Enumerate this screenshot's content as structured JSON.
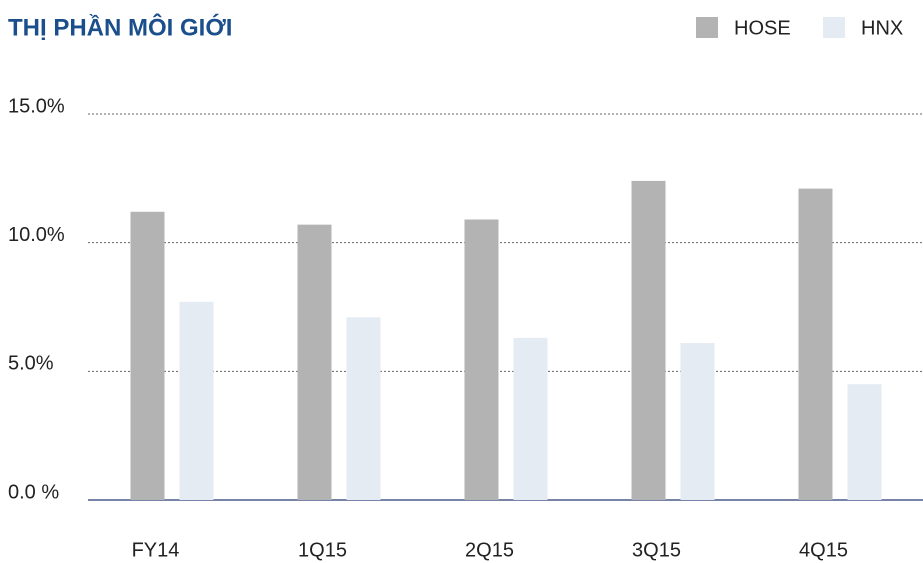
{
  "chart_data": {
    "type": "bar",
    "title": "THỊ PHẦN MÔI GIỚI",
    "categories": [
      "FY14",
      "1Q15",
      "2Q15",
      "3Q15",
      "4Q15"
    ],
    "series": [
      {
        "name": "HOSE",
        "color": "#b3b3b3",
        "values": [
          11.2,
          10.7,
          10.9,
          12.4,
          12.1
        ]
      },
      {
        "name": "HNX",
        "color": "#e5ebf2",
        "values": [
          7.7,
          7.1,
          6.3,
          6.1,
          4.5
        ]
      }
    ],
    "ylim": [
      0,
      15
    ],
    "yticks": [
      {
        "value": 0,
        "label": "0.0 %"
      },
      {
        "value": 5,
        "label": "5.0%"
      },
      {
        "value": 10,
        "label": "10.0%"
      },
      {
        "value": 15,
        "label": "15.0%"
      }
    ],
    "grid": true,
    "legend": "top-right"
  }
}
